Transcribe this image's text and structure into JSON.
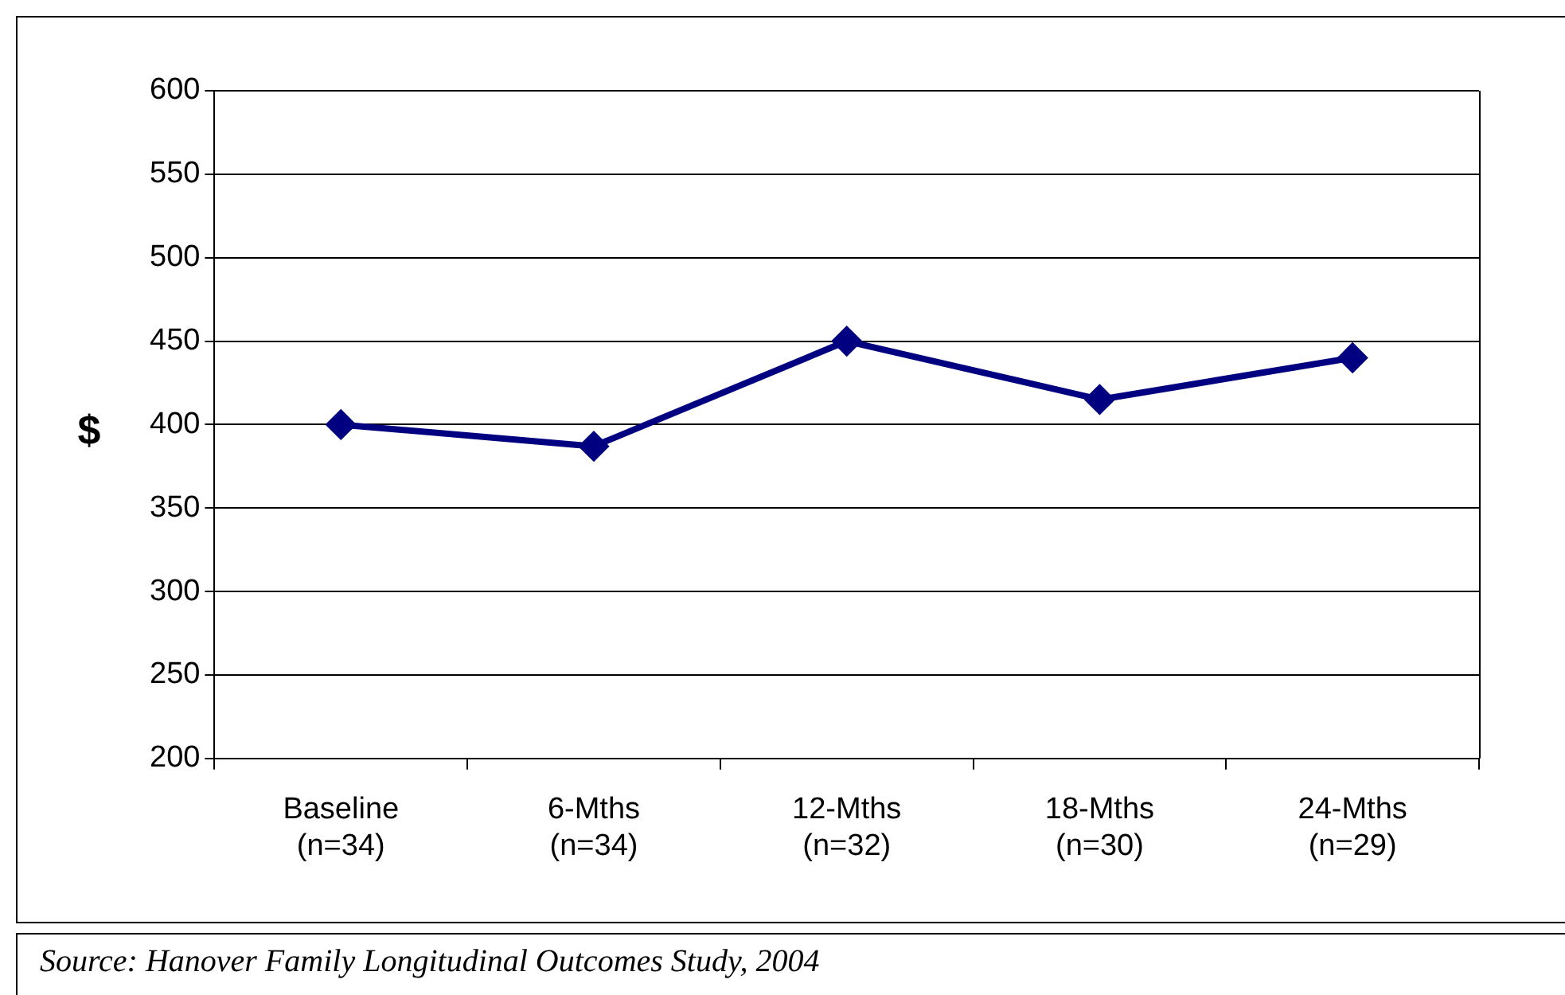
{
  "chart_data": {
    "type": "line",
    "ylabel": "$",
    "categories": [
      "Baseline\n(n=34)",
      "6-Mths\n(n=34)",
      "12-Mths\n(n=32)",
      "18-Mths\n(n=30)",
      "24-Mths\n(n=29)"
    ],
    "series": [
      {
        "color": "#000080",
        "values": [
          400,
          387,
          450,
          415,
          440
        ]
      }
    ],
    "ylim": [
      200,
      600
    ],
    "yticks": [
      200,
      250,
      300,
      350,
      400,
      450,
      500,
      550,
      600
    ],
    "grid": "y",
    "legend": false,
    "marker": "diamond",
    "line_style": "solid",
    "annotations": [
      "Source: Hanover Family Longitudinal Outcomes Study, 2004"
    ]
  }
}
